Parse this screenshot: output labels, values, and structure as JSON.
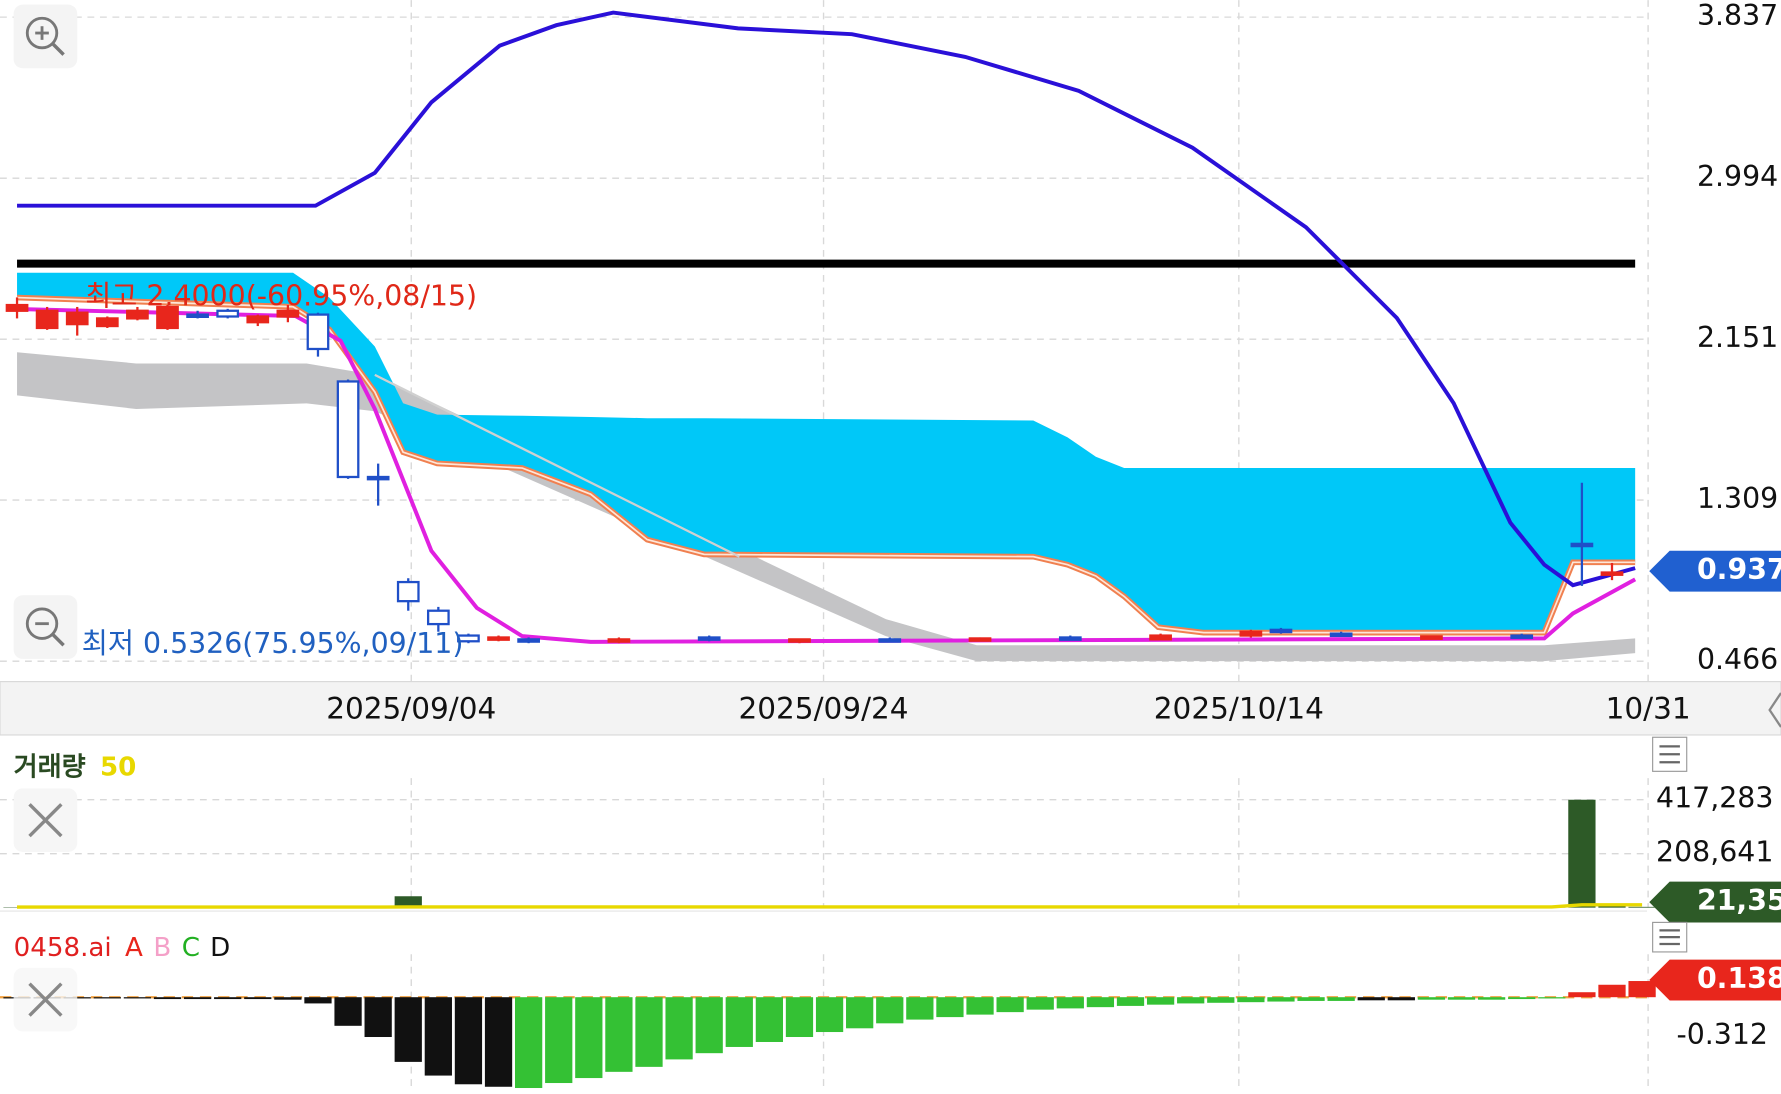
{
  "chart_data": [
    {
      "type": "candlestick",
      "high_label": "최고 2.4000(-60.95%,08/15)",
      "low_label": "최저 0.5326(75.95%,09/11)",
      "xlim": [
        0,
        54.2
      ],
      "xticks": [
        {
          "value": 13.1,
          "label": "2025/09/04"
        },
        {
          "value": 26.8,
          "label": "2025/09/24"
        },
        {
          "value": 40.6,
          "label": "2025/10/14"
        },
        {
          "value": 54.2,
          "label": "10/31"
        }
      ],
      "ylim": [
        0.466,
        3.837
      ],
      "yticks": [
        3.837,
        2.994,
        2.151,
        1.309,
        0.466
      ],
      "grid": true,
      "current": 0.937,
      "current_color": "#2060d0",
      "up_color": "#e8261c",
      "down_color": "#1f4fc8",
      "candles": {
        "x": [
          0,
          1,
          2,
          3,
          4,
          5,
          6,
          7,
          8,
          9,
          10,
          11,
          12,
          13,
          14,
          15,
          16,
          17,
          20,
          23,
          26,
          29,
          32,
          35,
          38,
          41,
          42,
          44,
          47,
          50,
          52,
          53
        ],
        "open": [
          2.3,
          2.21,
          2.23,
          2.22,
          2.26,
          2.21,
          2.28,
          2.3,
          2.24,
          2.27,
          2.28,
          1.93,
          1.43,
          0.88,
          0.73,
          0.6,
          0.58,
          0.58,
          0.57,
          0.59,
          0.57,
          0.58,
          0.575,
          0.59,
          0.58,
          0.6,
          0.63,
          0.61,
          0.59,
          0.6,
          1.08,
          0.92
        ],
        "high": [
          2.37,
          2.32,
          2.32,
          2.27,
          2.32,
          2.33,
          2.3,
          2.31,
          2.28,
          2.33,
          2.29,
          1.94,
          1.5,
          0.9,
          0.75,
          0.61,
          0.6,
          0.59,
          0.59,
          0.6,
          0.58,
          0.59,
          0.59,
          0.6,
          0.61,
          0.63,
          0.64,
          0.62,
          0.6,
          0.61,
          1.4,
          0.98
        ],
        "low": [
          2.26,
          2.2,
          2.17,
          2.21,
          2.25,
          2.2,
          2.26,
          2.26,
          2.22,
          2.24,
          2.06,
          1.42,
          1.28,
          0.73,
          0.62,
          0.56,
          0.57,
          0.56,
          0.56,
          0.57,
          0.56,
          0.57,
          0.57,
          0.58,
          0.575,
          0.59,
          0.61,
          0.6,
          0.585,
          0.59,
          0.86,
          0.89
        ],
        "close": [
          2.33,
          2.3,
          2.29,
          2.26,
          2.3,
          2.32,
          2.27,
          2.27,
          2.27,
          2.3,
          2.1,
          1.43,
          1.42,
          0.78,
          0.66,
          0.57,
          0.59,
          0.57,
          0.58,
          0.58,
          0.58,
          0.575,
          0.585,
          0.58,
          0.6,
          0.62,
          0.62,
          0.6,
          0.595,
          0.595,
          1.07,
          0.93
        ]
      },
      "bands": [
        {
          "color": "#c4c4c6",
          "x": [
            0,
            3.96,
            9.62,
            11.89,
            28.87,
            31.89,
            50.75,
            53.77
          ],
          "upper": [
            2.083,
            2.024,
            2.024,
            1.964,
            0.686,
            0.549,
            0.549,
            0.585
          ],
          "lower": [
            1.857,
            1.786,
            1.815,
            1.774,
            0.597,
            0.466,
            0.466,
            0.508
          ]
        },
        {
          "color": "#00c8f8",
          "edge_color": "#f08050",
          "x": [
            0,
            9.17,
            10.38,
            11.89,
            12.83,
            13.96,
            16.79,
            19.06,
            20.94,
            22.83,
            33.77,
            34.91,
            35.85,
            36.79,
            37.92,
            39.43,
            50.75,
            51.7,
            53.77
          ],
          "upper": [
            2.499,
            2.499,
            2.369,
            2.113,
            1.816,
            1.756,
            1.75,
            1.744,
            1.738,
            1.738,
            1.726,
            1.637,
            1.536,
            1.477,
            1.477,
            1.477,
            1.477,
            1.477,
            1.477
          ],
          "lower": [
            2.369,
            2.321,
            2.202,
            1.875,
            1.56,
            1.501,
            1.477,
            1.34,
            1.102,
            1.025,
            1.013,
            0.971,
            0.912,
            0.805,
            0.644,
            0.615,
            0.615,
            0.983,
            0.983
          ]
        }
      ],
      "lines": [
        {
          "color": "#d0d0d0",
          "width": 2,
          "x": [
            11.89,
            24
          ],
          "values": [
            1.964,
            1.013
          ]
        },
        {
          "color": "#000000",
          "width": 7,
          "x": [
            0,
            53.77
          ],
          "values": [
            2.547,
            2.547
          ]
        },
        {
          "color": "#2a10d8",
          "width": 3.5,
          "x": [
            0,
            9.92,
            11.89,
            13.77,
            16.04,
            17.92,
            19.81,
            23.96,
            27.74,
            31.51,
            35.28,
            39.06,
            42.83,
            45.85,
            47.74,
            49.62,
            50.75,
            51.7,
            53.77
          ],
          "values": [
            2.85,
            2.85,
            3.022,
            3.391,
            3.688,
            3.795,
            3.861,
            3.778,
            3.748,
            3.629,
            3.451,
            3.153,
            2.737,
            2.262,
            1.816,
            1.191,
            0.971,
            0.864,
            0.953
          ]
        },
        {
          "color": "#e020e0",
          "width": 3.5,
          "x": [
            0,
            9.25,
            10.75,
            11.89,
            13.77,
            15.28,
            16.79,
            19.06,
            50.75,
            51.7,
            53.77
          ],
          "values": [
            2.309,
            2.273,
            2.143,
            1.786,
            1.043,
            0.745,
            0.597,
            0.567,
            0.585,
            0.716,
            0.894
          ]
        }
      ]
    },
    {
      "type": "bar",
      "title": "거래량",
      "xlim": [
        0,
        54.2
      ],
      "ylim": [
        0,
        470000
      ],
      "yticks": [
        {
          "value": 417283,
          "label": "417,283"
        },
        {
          "value": 208641,
          "label": "208,641"
        }
      ],
      "grid": true,
      "color": "#2d5a27",
      "current": {
        "value": 21350,
        "label": "21,35"
      },
      "current_color": "#2d5a27",
      "x": [
        0,
        1,
        2,
        3,
        4,
        5,
        6,
        7,
        8,
        9,
        10,
        11,
        12,
        13,
        14,
        15,
        16,
        17,
        18,
        19,
        20,
        21,
        22,
        23,
        24,
        25,
        26,
        27,
        28,
        29,
        30,
        31,
        32,
        33,
        34,
        35,
        36,
        37,
        38,
        39,
        40,
        41,
        42,
        43,
        44,
        45,
        46,
        47,
        48,
        49,
        50,
        51,
        52,
        53,
        54
      ],
      "values": [
        1500,
        1500,
        1500,
        1500,
        1500,
        1500,
        1500,
        1500,
        1500,
        1500,
        1500,
        1500,
        1500,
        44000,
        1500,
        1500,
        1500,
        1500,
        1500,
        1500,
        1500,
        1500,
        1500,
        1500,
        1500,
        1500,
        1500,
        1500,
        1500,
        1500,
        1500,
        1500,
        1500,
        1500,
        1500,
        1500,
        1500,
        1500,
        1500,
        1500,
        1500,
        1500,
        1500,
        1500,
        1500,
        1500,
        1500,
        1500,
        1500,
        1500,
        1500,
        1500,
        417283,
        6000,
        3000
      ],
      "series": [
        {
          "name": "50",
          "color": "#e8d800",
          "values": [
            2000,
            2000,
            2000,
            2000,
            2000,
            2000,
            2000,
            2000,
            2000,
            2000,
            2000,
            2000,
            2000,
            2800,
            2800,
            2800,
            2800,
            2800,
            2800,
            2800,
            2800,
            2800,
            2800,
            2800,
            2800,
            2800,
            2800,
            2800,
            2800,
            2800,
            2800,
            2800,
            2800,
            2800,
            2800,
            2800,
            2800,
            2800,
            2800,
            2800,
            2800,
            2800,
            2800,
            2800,
            2800,
            2800,
            2800,
            2800,
            2800,
            2800,
            2800,
            2800,
            11000,
            11100,
            11150
          ]
        }
      ]
    },
    {
      "type": "bar",
      "title": "0458.ai",
      "legend": [
        {
          "name": "A",
          "color": "#e8261c"
        },
        {
          "name": "B",
          "color": "#f4a0c8"
        },
        {
          "name": "C",
          "color": "#22b022"
        },
        {
          "name": "D",
          "color": "#111111"
        }
      ],
      "xlim": [
        0,
        54.2
      ],
      "ylim": [
        -0.75,
        0.3
      ],
      "yticks": [
        -0.312
      ],
      "grid": false,
      "current": 0.138,
      "current_color": "#e8261c",
      "x": [
        0,
        1,
        2,
        3,
        4,
        5,
        6,
        7,
        8,
        9,
        10,
        11,
        12,
        13,
        14,
        15,
        16,
        17,
        18,
        19,
        20,
        21,
        22,
        23,
        24,
        25,
        26,
        27,
        28,
        29,
        30,
        31,
        32,
        33,
        34,
        35,
        36,
        37,
        38,
        39,
        40,
        41,
        42,
        43,
        44,
        45,
        46,
        47,
        48,
        49,
        50,
        51,
        52,
        53,
        54
      ],
      "values": [
        -0.01,
        -0.01,
        -0.01,
        -0.01,
        -0.01,
        -0.015,
        -0.015,
        -0.015,
        -0.015,
        -0.02,
        -0.05,
        -0.23,
        -0.32,
        -0.52,
        -0.63,
        -0.7,
        -0.72,
        -0.73,
        -0.69,
        -0.65,
        -0.6,
        -0.56,
        -0.5,
        -0.45,
        -0.4,
        -0.36,
        -0.32,
        -0.28,
        -0.25,
        -0.21,
        -0.18,
        -0.16,
        -0.14,
        -0.12,
        -0.1,
        -0.09,
        -0.08,
        -0.07,
        -0.06,
        -0.05,
        -0.045,
        -0.04,
        -0.035,
        -0.03,
        -0.03,
        -0.025,
        -0.025,
        -0.02,
        -0.02,
        -0.02,
        -0.015,
        -0.01,
        0.04,
        0.1,
        0.13
      ],
      "bar_colors": [
        "#111111",
        "#111111",
        "#111111",
        "#111111",
        "#111111",
        "#111111",
        "#111111",
        "#111111",
        "#111111",
        "#111111",
        "#111111",
        "#111111",
        "#111111",
        "#111111",
        "#111111",
        "#111111",
        "#111111",
        "#34c134",
        "#34c134",
        "#34c134",
        "#34c134",
        "#34c134",
        "#34c134",
        "#34c134",
        "#34c134",
        "#34c134",
        "#34c134",
        "#34c134",
        "#34c134",
        "#34c134",
        "#34c134",
        "#34c134",
        "#34c134",
        "#34c134",
        "#34c134",
        "#34c134",
        "#34c134",
        "#34c134",
        "#34c134",
        "#34c134",
        "#34c134",
        "#34c134",
        "#34c134",
        "#34c134",
        "#34c134",
        "#111111",
        "#111111",
        "#34c134",
        "#34c134",
        "#34c134",
        "#34c134",
        "#34c134",
        "#e8261c",
        "#e8261c",
        "#e8261c"
      ]
    }
  ]
}
